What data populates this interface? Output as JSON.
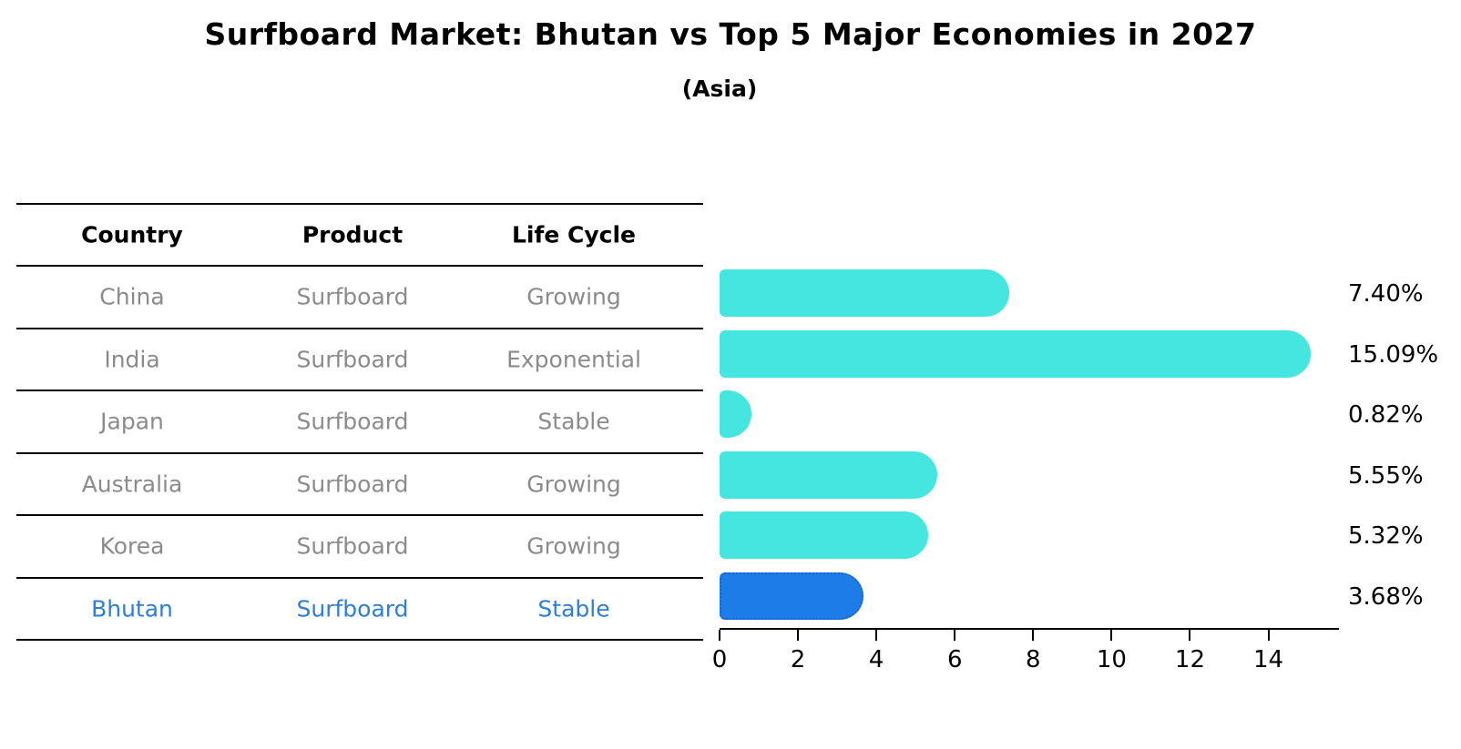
{
  "title": "Surfboard Market: Bhutan vs Top 5 Major Economies in 2027",
  "subtitle": "(Asia)",
  "table": {
    "headers": [
      "Country",
      "Product",
      "Life Cycle"
    ],
    "rows": [
      {
        "country": "China",
        "product": "Surfboard",
        "life_cycle": "Growing",
        "highlight": false
      },
      {
        "country": "India",
        "product": "Surfboard",
        "life_cycle": "Exponential",
        "highlight": false
      },
      {
        "country": "Japan",
        "product": "Surfboard",
        "life_cycle": "Stable",
        "highlight": false
      },
      {
        "country": "Australia",
        "product": "Surfboard",
        "life_cycle": "Growing",
        "highlight": false
      },
      {
        "country": "Korea",
        "product": "Surfboard",
        "life_cycle": "Growing",
        "highlight": false
      },
      {
        "country": "Bhutan",
        "product": "Surfboard",
        "life_cycle": "Stable",
        "highlight": true
      }
    ]
  },
  "chart_data": {
    "type": "bar",
    "orientation": "horizontal",
    "title": "Surfboard Market: Bhutan vs Top 5 Major Economies in 2027",
    "subtitle": "(Asia)",
    "categories": [
      "China",
      "India",
      "Japan",
      "Australia",
      "Korea",
      "Bhutan"
    ],
    "values": [
      7.4,
      15.09,
      0.82,
      5.55,
      5.32,
      3.68
    ],
    "value_labels": [
      "7.40%",
      "15.09%",
      "0.82%",
      "5.55%",
      "5.32%",
      "3.68%"
    ],
    "x_ticks": [
      "0",
      "2",
      "4",
      "6",
      "8",
      "10",
      "12",
      "14"
    ],
    "xlim": [
      0,
      15.8
    ],
    "xlabel": "",
    "ylabel": "",
    "grid": false,
    "legend": null,
    "highlight_category": "Bhutan",
    "colors": {
      "bar": "#45E6E0",
      "highlight_bar": "#1E7CE8",
      "highlight_border": "#1563D2",
      "row_text": "#8B8B8B",
      "highlight_text": "#2E7FD3",
      "axis": "#000000",
      "text": "#000000"
    }
  }
}
